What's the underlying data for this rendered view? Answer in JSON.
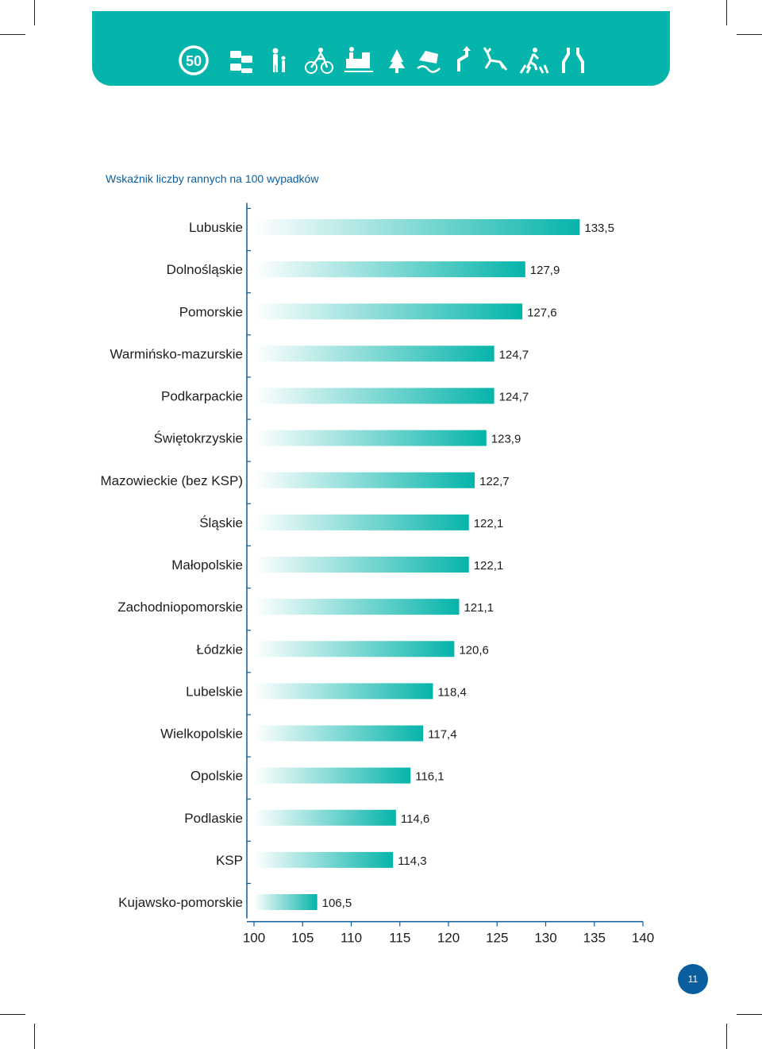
{
  "header": {
    "icons": [
      "speed-limit-50-icon",
      "traffic-jam-icon",
      "pedestrians-icon",
      "cyclist-icon",
      "train-crossing-icon",
      "tree-icon",
      "skidding-car-icon",
      "sharp-curve-icon",
      "deer-icon",
      "pedestrian-crossing-icon",
      "road-narrowing-icon"
    ],
    "speed_limit": "50"
  },
  "chart_title": "Wskaźnik liczby rannych na 100 wypadków",
  "page_number": "11",
  "colors": {
    "banner": "#05b4aa",
    "bar": "#05b4aa",
    "title": "#0a5e9e",
    "axis": "#0a5e9e",
    "badge": "#0a5e9e"
  },
  "chart_data": {
    "type": "bar",
    "orientation": "horizontal",
    "title": "Wskaźnik liczby rannych na 100 wypadków",
    "categories": [
      "Lubuskie",
      "Dolnośląskie",
      "Pomorskie",
      "Warmińsko-mazurskie",
      "Podkarpackie",
      "Świętokrzyskie",
      "Mazowieckie (bez KSP)",
      "Śląskie",
      "Małopolskie",
      "Zachodniopomorskie",
      "Łódzkie",
      "Lubelskie",
      "Wielkopolskie",
      "Opolskie",
      "Podlaskie",
      "KSP",
      "Kujawsko-pomorskie"
    ],
    "values": [
      133.5,
      127.9,
      127.6,
      124.7,
      124.7,
      123.9,
      122.7,
      122.1,
      122.1,
      121.1,
      120.6,
      118.4,
      117.4,
      116.1,
      114.6,
      114.3,
      106.5
    ],
    "value_labels": [
      "133,5",
      "127,9",
      "127,6",
      "124,7",
      "124,7",
      "123,9",
      "122,7",
      "122,1",
      "122,1",
      "121,1",
      "120,6",
      "118,4",
      "117,4",
      "116,1",
      "114,6",
      "114,3",
      "106,5"
    ],
    "xlim": [
      100,
      140
    ],
    "xticks": [
      "100",
      "105",
      "110",
      "115",
      "120",
      "125",
      "130",
      "135",
      "140"
    ],
    "grid": false,
    "legend": "none"
  }
}
